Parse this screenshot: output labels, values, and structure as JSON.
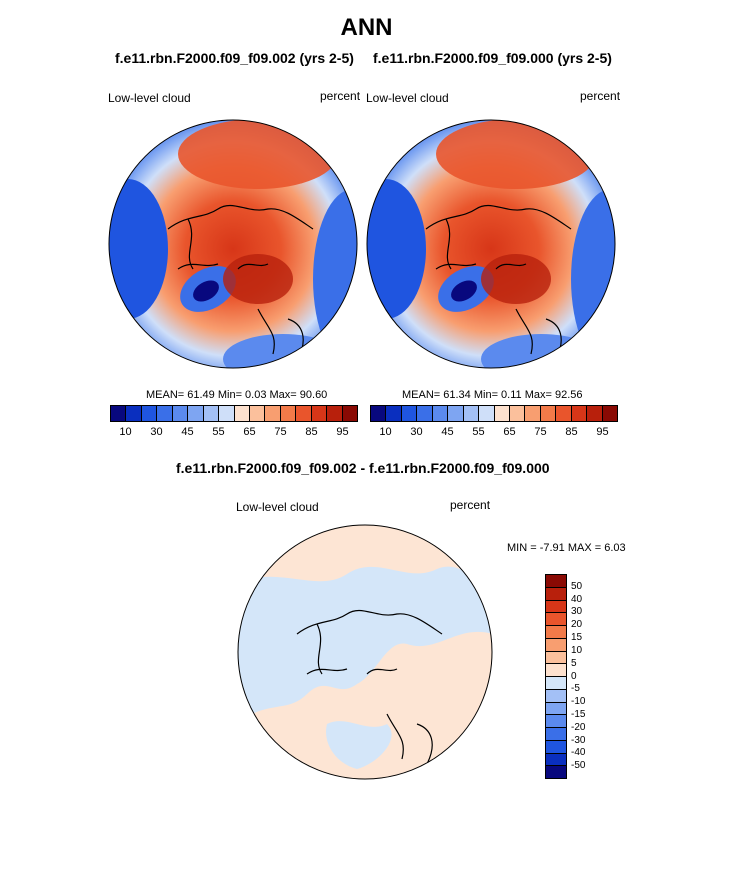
{
  "title": "ANN",
  "panels": [
    {
      "case": "f.e11.rbn.F2000.f09_f09.002 (yrs 2-5)",
      "variable": "Low-level cloud",
      "units": "percent",
      "stats": "MEAN= 61.49 Min= 0.03 Max= 90.60",
      "mean": 61.49,
      "min": 0.03,
      "max": 90.6
    },
    {
      "case": "f.e11.rbn.F2000.f09_f09.000 (yrs 2-5)",
      "variable": "Low-level cloud",
      "units": "percent",
      "stats": "MEAN= 61.34 Min= 0.11 Max= 92.56",
      "mean": 61.34,
      "min": 0.11,
      "max": 92.56
    }
  ],
  "colorbar": {
    "colors": [
      "#08087e",
      "#0a2fbf",
      "#1f55e0",
      "#3a6fe8",
      "#5b8aee",
      "#7ea5f2",
      "#a3c0f6",
      "#cfdff9",
      "#fde1ce",
      "#fbc09c",
      "#f89e70",
      "#f27a49",
      "#e9552c",
      "#d73618",
      "#b8200c",
      "#8a0a04"
    ],
    "ticks": [
      "10",
      "30",
      "45",
      "55",
      "65",
      "75",
      "85",
      "95"
    ]
  },
  "diff": {
    "title": "f.e11.rbn.F2000.f09_f09.002 - f.e11.rbn.F2000.f09_f09.000",
    "variable": "Low-level cloud",
    "units": "percent",
    "stats": "MIN = -7.91 MAX = 6.03",
    "min": -7.91,
    "max": 6.03,
    "colorbar": {
      "colors": [
        "#8a0a04",
        "#b8200c",
        "#d73618",
        "#e9552c",
        "#f27a49",
        "#f89e70",
        "#fbc09c",
        "#fde1ce",
        "#d4e6f9",
        "#a3c0f6",
        "#7ea5f2",
        "#5b8aee",
        "#3a6fe8",
        "#1f55e0",
        "#0a2fbf",
        "#08087e"
      ],
      "ticks": [
        "50",
        "40",
        "30",
        "20",
        "15",
        "10",
        "5",
        "0",
        "-5",
        "-10",
        "-15",
        "-20",
        "-30",
        "-40",
        "-50"
      ]
    }
  }
}
